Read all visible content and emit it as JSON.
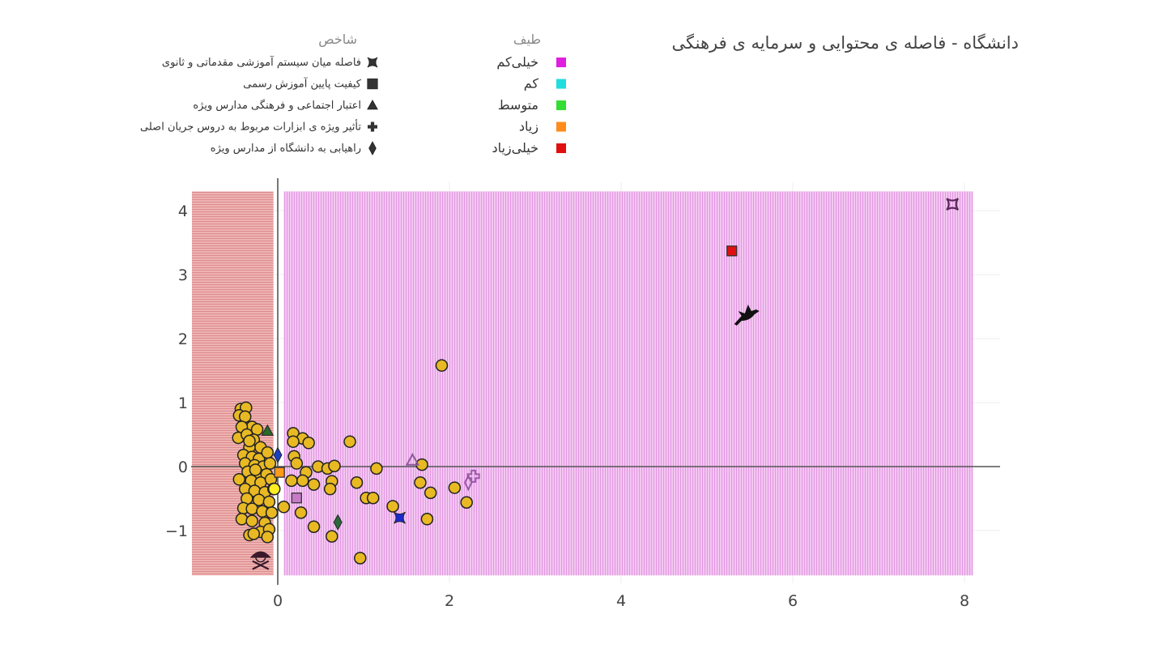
{
  "chart_data": {
    "type": "scatter",
    "title": "دانشگاه - فاصله ی محتوایی و سرمایه ی فرهنگی",
    "xlabel": "",
    "ylabel": "",
    "xlim": [
      -1.05,
      8.4
    ],
    "ylim": [
      -1.75,
      4.35
    ],
    "x_ticks": [
      0,
      2,
      4,
      6,
      8
    ],
    "y_ticks": [
      -1,
      0,
      1,
      2,
      3,
      4
    ],
    "x_tick_labels": [
      "0",
      "2",
      "4",
      "6",
      "8"
    ],
    "y_tick_labels": [
      "−1",
      "0",
      "1",
      "2",
      "3",
      "4"
    ],
    "grid": true,
    "legend_spectrum": {
      "title": "طیف",
      "items": [
        {
          "label": "خیلی‌کم",
          "color": "#e01ee0"
        },
        {
          "label": "کم",
          "color": "#22dddd"
        },
        {
          "label": "متوسط",
          "color": "#33dd33"
        },
        {
          "label": "زیاد",
          "color": "#ff8c1a"
        },
        {
          "label": "خیلی‌زیاد",
          "color": "#e01010"
        }
      ]
    },
    "legend_indicator": {
      "title": "شاخص",
      "items": [
        {
          "label": "فاصله میان سیستم آموزشی مقدماتی و ثانوی",
          "symbol": "bowtie"
        },
        {
          "label": "کیفیت پایین آموزش رسمی",
          "symbol": "square"
        },
        {
          "label": "اعتبار اجتماعی و فرهنگی مدارس ویژه",
          "symbol": "triangle"
        },
        {
          "label": "تأثیر ویژه ی ابزارات مربوط به دروس جریان اصلی",
          "symbol": "cross"
        },
        {
          "label": "راهیابی به دانشگاه از مدارس ویژه",
          "symbol": "diamond"
        }
      ]
    },
    "regions": [
      {
        "name": "negative-region",
        "x": [
          -1.0,
          -0.05
        ],
        "y": [
          -1.7,
          4.3
        ],
        "color": "#eaa6a6"
      },
      {
        "name": "positive-region",
        "x": [
          0.07,
          8.1
        ],
        "y": [
          -1.7,
          4.3
        ],
        "color": "#f2bdf0"
      }
    ],
    "points": [
      {
        "x": 1.91,
        "y": 1.58
      },
      {
        "x": 0.84,
        "y": 0.39
      },
      {
        "x": 0.18,
        "y": 0.52
      },
      {
        "x": 0.29,
        "y": 0.44
      },
      {
        "x": 0.36,
        "y": 0.37
      },
      {
        "x": 0.18,
        "y": 0.39
      },
      {
        "x": 0.19,
        "y": 0.16
      },
      {
        "x": 0.22,
        "y": 0.05
      },
      {
        "x": 0.33,
        "y": -0.09
      },
      {
        "x": 0.47,
        "y": 0.0
      },
      {
        "x": 0.58,
        "y": -0.03
      },
      {
        "x": 0.66,
        "y": 0.01
      },
      {
        "x": 0.16,
        "y": -0.22
      },
      {
        "x": 0.29,
        "y": -0.22
      },
      {
        "x": 0.42,
        "y": -0.28
      },
      {
        "x": 0.63,
        "y": -0.23
      },
      {
        "x": 0.61,
        "y": -0.35
      },
      {
        "x": 0.92,
        "y": -0.25
      },
      {
        "x": 1.15,
        "y": -0.03
      },
      {
        "x": 1.03,
        "y": -0.49
      },
      {
        "x": 1.11,
        "y": -0.49
      },
      {
        "x": 0.07,
        "y": -0.63
      },
      {
        "x": 0.27,
        "y": -0.72
      },
      {
        "x": 0.42,
        "y": -0.94
      },
      {
        "x": 0.63,
        "y": -1.09
      },
      {
        "x": 0.96,
        "y": -1.43
      },
      {
        "x": 1.34,
        "y": -0.62
      },
      {
        "x": 1.68,
        "y": 0.03
      },
      {
        "x": 1.66,
        "y": -0.25
      },
      {
        "x": 1.78,
        "y": -0.41
      },
      {
        "x": 2.06,
        "y": -0.33
      },
      {
        "x": 2.2,
        "y": -0.56
      },
      {
        "x": 1.74,
        "y": -0.82
      },
      {
        "x": -0.43,
        "y": 0.9
      },
      {
        "x": -0.37,
        "y": 0.92
      },
      {
        "x": -0.45,
        "y": 0.8
      },
      {
        "x": -0.38,
        "y": 0.78
      },
      {
        "x": -0.3,
        "y": 0.62
      },
      {
        "x": -0.42,
        "y": 0.62
      },
      {
        "x": -0.24,
        "y": 0.58
      },
      {
        "x": -0.46,
        "y": 0.45
      },
      {
        "x": -0.36,
        "y": 0.5
      },
      {
        "x": -0.28,
        "y": 0.42
      },
      {
        "x": -0.2,
        "y": 0.3
      },
      {
        "x": -0.33,
        "y": 0.3
      },
      {
        "x": -0.4,
        "y": 0.18
      },
      {
        "x": -0.3,
        "y": 0.15
      },
      {
        "x": -0.22,
        "y": 0.12
      },
      {
        "x": -0.12,
        "y": 0.22
      },
      {
        "x": -0.38,
        "y": 0.05
      },
      {
        "x": -0.27,
        "y": 0.02
      },
      {
        "x": -0.17,
        "y": 0.0
      },
      {
        "x": -0.09,
        "y": 0.05
      },
      {
        "x": -0.35,
        "y": -0.08
      },
      {
        "x": -0.24,
        "y": -0.1
      },
      {
        "x": -0.13,
        "y": -0.12
      },
      {
        "x": -0.45,
        "y": -0.2
      },
      {
        "x": -0.31,
        "y": -0.22
      },
      {
        "x": -0.2,
        "y": -0.25
      },
      {
        "x": -0.08,
        "y": -0.2
      },
      {
        "x": -0.38,
        "y": -0.35
      },
      {
        "x": -0.27,
        "y": -0.38
      },
      {
        "x": -0.15,
        "y": -0.4
      },
      {
        "x": -0.05,
        "y": -0.35
      },
      {
        "x": -0.36,
        "y": -0.5
      },
      {
        "x": -0.22,
        "y": -0.52
      },
      {
        "x": -0.1,
        "y": -0.55
      },
      {
        "x": -0.4,
        "y": -0.65
      },
      {
        "x": -0.3,
        "y": -0.66
      },
      {
        "x": -0.18,
        "y": -0.7
      },
      {
        "x": -0.07,
        "y": -0.72
      },
      {
        "x": -0.42,
        "y": -0.82
      },
      {
        "x": -0.3,
        "y": -0.85
      },
      {
        "x": -0.15,
        "y": -0.88
      },
      {
        "x": -0.2,
        "y": -1.02
      },
      {
        "x": -0.1,
        "y": -0.98
      },
      {
        "x": -0.33,
        "y": -1.07
      },
      {
        "x": -0.28,
        "y": -1.05
      },
      {
        "x": -0.12,
        "y": -1.1
      },
      {
        "x": -0.26,
        "y": -0.05
      },
      {
        "x": -0.33,
        "y": 0.4
      }
    ],
    "special_markers": [
      {
        "x": 0.22,
        "y": -0.49,
        "symbol": "square",
        "color": "#c77ac7"
      },
      {
        "x": 0.02,
        "y": -0.09,
        "symbol": "square",
        "color": "#ff9a1a"
      },
      {
        "x": 0.0,
        "y": 0.18,
        "symbol": "diamond",
        "color": "#1c3fc0"
      },
      {
        "x": -0.04,
        "y": -0.35,
        "symbol": "circle",
        "color": "#ffee22"
      },
      {
        "x": -0.12,
        "y": 0.56,
        "symbol": "triangle",
        "color": "#2a6a2a"
      },
      {
        "x": 1.57,
        "y": 0.1,
        "symbol": "triangle-open",
        "color": "#8a5a9a"
      },
      {
        "x": 2.28,
        "y": -0.15,
        "symbol": "cross-open",
        "color": "#9a5aa8"
      },
      {
        "x": 2.22,
        "y": -0.25,
        "symbol": "diamond-open",
        "color": "#9a5aa8"
      },
      {
        "x": 0.7,
        "y": -0.87,
        "symbol": "diamond",
        "color": "#2a6a3a"
      },
      {
        "x": 1.42,
        "y": -0.8,
        "symbol": "bowtie",
        "color": "#1a2ad0"
      },
      {
        "x": 5.29,
        "y": 3.37,
        "symbol": "square",
        "color": "#e01010"
      },
      {
        "x": 7.86,
        "y": 4.1,
        "symbol": "bowtie-open",
        "color": "#5a2a5a"
      },
      {
        "x": 5.46,
        "y": 2.38,
        "symbol": "dove",
        "color": "#111111"
      },
      {
        "x": -0.2,
        "y": -1.4,
        "symbol": "skull",
        "color": "#3a1a2a"
      }
    ]
  }
}
